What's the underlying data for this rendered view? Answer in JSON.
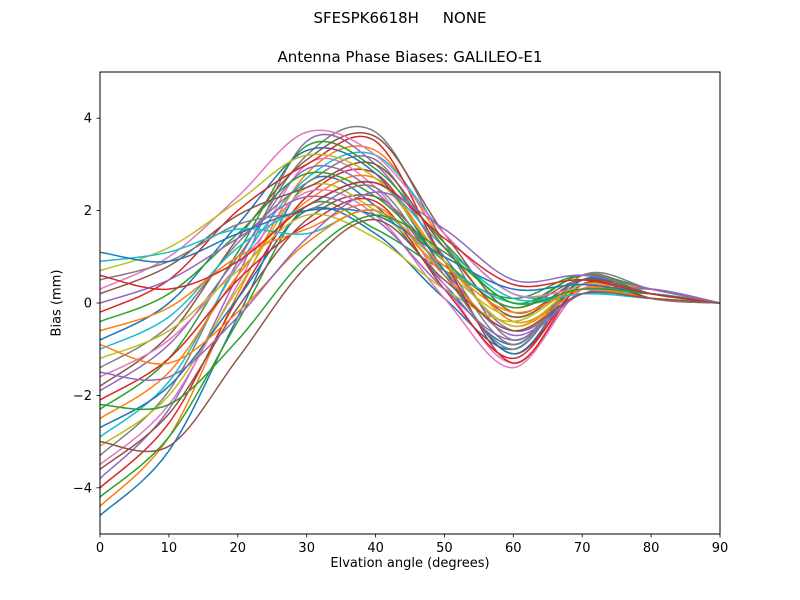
{
  "chart_data": {
    "type": "line",
    "suptitle": "SFESPK6618H     NONE",
    "title": "Antenna Phase Biases: GALILEO-E1",
    "xlabel": "Elvation angle (degrees)",
    "ylabel": "Bias (mm)",
    "xlim": [
      0,
      90
    ],
    "ylim": [
      -5,
      5
    ],
    "xticks": [
      0,
      10,
      20,
      30,
      40,
      50,
      60,
      70,
      80,
      90
    ],
    "yticks": [
      -4,
      -2,
      0,
      2,
      4
    ],
    "grid": false,
    "legend": "none",
    "x": [
      0,
      10,
      20,
      30,
      40,
      50,
      60,
      70,
      80,
      90
    ],
    "series": [
      {
        "name": "line-01",
        "color": "#1f77b4",
        "values": [
          -4.6,
          -3.2,
          -0.3,
          2.6,
          2.1,
          0.4,
          -0.9,
          0.5,
          0.3,
          0
        ]
      },
      {
        "name": "line-02",
        "color": "#ff7f0e",
        "values": [
          -4.4,
          -2.9,
          0.2,
          2.8,
          3.3,
          1.3,
          -0.4,
          0.3,
          0.2,
          0
        ]
      },
      {
        "name": "line-03",
        "color": "#2ca02c",
        "values": [
          -4.2,
          -2.9,
          -0.4,
          2.1,
          1.6,
          0.7,
          0.1,
          0.6,
          0.1,
          0
        ]
      },
      {
        "name": "line-04",
        "color": "#d62728",
        "values": [
          -4.0,
          -2.6,
          0.1,
          2.3,
          2.8,
          0.7,
          -1.1,
          0.4,
          0.3,
          0
        ]
      },
      {
        "name": "line-05",
        "color": "#9467bd",
        "values": [
          -3.8,
          -2.3,
          0.6,
          3.5,
          3.0,
          1.0,
          -0.6,
          0.2,
          0.2,
          0
        ]
      },
      {
        "name": "line-06",
        "color": "#8c564b",
        "values": [
          -3.6,
          -2.4,
          -0.1,
          1.8,
          2.3,
          0.9,
          -0.1,
          0.5,
          0.1,
          0
        ]
      },
      {
        "name": "line-07",
        "color": "#e377c2",
        "values": [
          -3.5,
          -2.2,
          0.4,
          3.0,
          2.5,
          0.4,
          -1.3,
          0.3,
          0.3,
          0
        ]
      },
      {
        "name": "line-08",
        "color": "#7f7f7f",
        "values": [
          -3.3,
          -1.9,
          0.9,
          3.2,
          3.7,
          1.3,
          -0.8,
          0.6,
          0.2,
          0
        ]
      },
      {
        "name": "line-09",
        "color": "#bcbd22",
        "values": [
          -3.1,
          -2.0,
          0.3,
          2.5,
          2.0,
          0.7,
          -0.3,
          0.4,
          0.1,
          0
        ]
      },
      {
        "name": "line-10",
        "color": "#17becf",
        "values": [
          -2.9,
          -1.7,
          0.8,
          2.7,
          3.2,
          1.5,
          0.2,
          0.2,
          0.3,
          0
        ]
      },
      {
        "name": "line-11",
        "color": "#1f77b4",
        "values": [
          -2.7,
          -1.8,
          0.1,
          2.0,
          1.5,
          0.1,
          -1.0,
          0.5,
          0.2,
          0
        ]
      },
      {
        "name": "line-12",
        "color": "#ff7f0e",
        "values": [
          -2.5,
          -1.5,
          0.6,
          2.2,
          2.7,
          0.9,
          -0.5,
          0.3,
          0.1,
          0
        ]
      },
      {
        "name": "line-13",
        "color": "#2ca02c",
        "values": [
          -2.3,
          -1.2,
          1.1,
          3.4,
          2.9,
          1.3,
          0.0,
          0.6,
          0.3,
          0
        ]
      },
      {
        "name": "line-14",
        "color": "#d62728",
        "values": [
          -2.1,
          -1.2,
          0.5,
          1.7,
          2.2,
          0.3,
          -1.2,
          0.4,
          0.2,
          0
        ]
      },
      {
        "name": "line-15",
        "color": "#9467bd",
        "values": [
          -1.9,
          -0.9,
          1.0,
          2.9,
          2.4,
          0.7,
          -0.7,
          0.2,
          0.1,
          0
        ]
      },
      {
        "name": "line-16",
        "color": "#8c564b",
        "values": [
          -1.8,
          -0.7,
          1.4,
          3.1,
          3.6,
          1.5,
          -0.2,
          0.5,
          0.3,
          0
        ]
      },
      {
        "name": "line-17",
        "color": "#e377c2",
        "values": [
          -1.6,
          -0.8,
          0.8,
          2.4,
          1.9,
          0.1,
          -1.4,
          0.3,
          0.2,
          0
        ]
      },
      {
        "name": "line-18",
        "color": "#7f7f7f",
        "values": [
          -1.4,
          -0.5,
          1.3,
          2.6,
          3.1,
          0.9,
          -0.9,
          0.6,
          0.1,
          0
        ]
      },
      {
        "name": "line-19",
        "color": "#bcbd22",
        "values": [
          -1.2,
          -0.6,
          0.7,
          1.9,
          1.4,
          0.3,
          -0.4,
          0.4,
          0.3,
          0
        ]
      },
      {
        "name": "line-20",
        "color": "#17becf",
        "values": [
          -1.0,
          -0.3,
          1.2,
          2.1,
          2.6,
          1.2,
          0.1,
          0.2,
          0.2,
          0
        ]
      },
      {
        "name": "line-21",
        "color": "#1f77b4",
        "values": [
          -0.8,
          0.0,
          1.7,
          3.3,
          2.8,
          0.7,
          -1.1,
          0.5,
          0.1,
          0
        ]
      },
      {
        "name": "line-22",
        "color": "#ff7f0e",
        "values": [
          -0.6,
          -0.1,
          1.0,
          1.6,
          2.1,
          0.6,
          -0.6,
          0.3,
          0.3,
          0
        ]
      },
      {
        "name": "line-23",
        "color": "#2ca02c",
        "values": [
          -0.4,
          0.2,
          1.5,
          2.8,
          2.3,
          0.9,
          -0.1,
          0.6,
          0.2,
          0
        ]
      },
      {
        "name": "line-24",
        "color": "#d62728",
        "values": [
          -0.2,
          0.5,
          2.0,
          3.0,
          3.5,
          0.9,
          -1.3,
          0.4,
          0.1,
          0
        ]
      },
      {
        "name": "line-25",
        "color": "#9467bd",
        "values": [
          0.0,
          0.5,
          1.4,
          2.3,
          1.8,
          0.3,
          -0.8,
          0.2,
          0.3,
          0
        ]
      },
      {
        "name": "line-26",
        "color": "#8c564b",
        "values": [
          0.2,
          0.8,
          1.9,
          2.5,
          3.0,
          1.2,
          -0.3,
          0.5,
          0.2,
          0
        ]
      },
      {
        "name": "line-27",
        "color": "#e377c2",
        "values": [
          0.3,
          1.0,
          2.3,
          3.7,
          3.2,
          1.5,
          0.2,
          0.3,
          0.1,
          0
        ]
      },
      {
        "name": "line-28",
        "color": "#7f7f7f",
        "values": [
          0.5,
          0.9,
          1.7,
          2.0,
          2.5,
          0.6,
          -1.0,
          0.6,
          0.3,
          0
        ]
      },
      {
        "name": "line-29",
        "color": "#bcbd22",
        "values": [
          0.7,
          1.2,
          2.2,
          3.2,
          2.7,
          0.9,
          -0.5,
          0.4,
          0.2,
          0
        ]
      },
      {
        "name": "line-30",
        "color": "#17becf",
        "values": [
          0.9,
          1.1,
          1.6,
          1.5,
          2.0,
          0.8,
          0.0,
          0.2,
          0.1,
          0
        ]
      },
      {
        "name": "line-31",
        "color": "#1f77b4",
        "values": [
          1.1,
          0.9,
          1.5,
          2.0,
          1.9,
          1.0,
          0.3,
          0.4,
          0.2,
          0
        ]
      },
      {
        "name": "line-32",
        "color": "#ff7f0e",
        "values": [
          -0.9,
          -1.3,
          -0.2,
          1.3,
          2.0,
          0.8,
          -0.2,
          0.3,
          0.1,
          0
        ]
      },
      {
        "name": "line-33",
        "color": "#2ca02c",
        "values": [
          -2.2,
          -2.2,
          -0.8,
          1.0,
          1.9,
          1.1,
          0.0,
          0.3,
          0.2,
          0
        ]
      },
      {
        "name": "line-34",
        "color": "#d62728",
        "values": [
          0.6,
          0.3,
          0.9,
          2.1,
          2.6,
          1.4,
          0.4,
          0.5,
          0.2,
          0
        ]
      },
      {
        "name": "line-35",
        "color": "#9467bd",
        "values": [
          -1.5,
          -1.6,
          -0.3,
          1.4,
          2.4,
          1.6,
          0.5,
          0.6,
          0.3,
          0
        ]
      },
      {
        "name": "line-36",
        "color": "#8c564b",
        "values": [
          -3.0,
          -3.1,
          -1.2,
          0.8,
          1.8,
          0.5,
          -0.6,
          0.2,
          0.1,
          0
        ]
      }
    ]
  }
}
